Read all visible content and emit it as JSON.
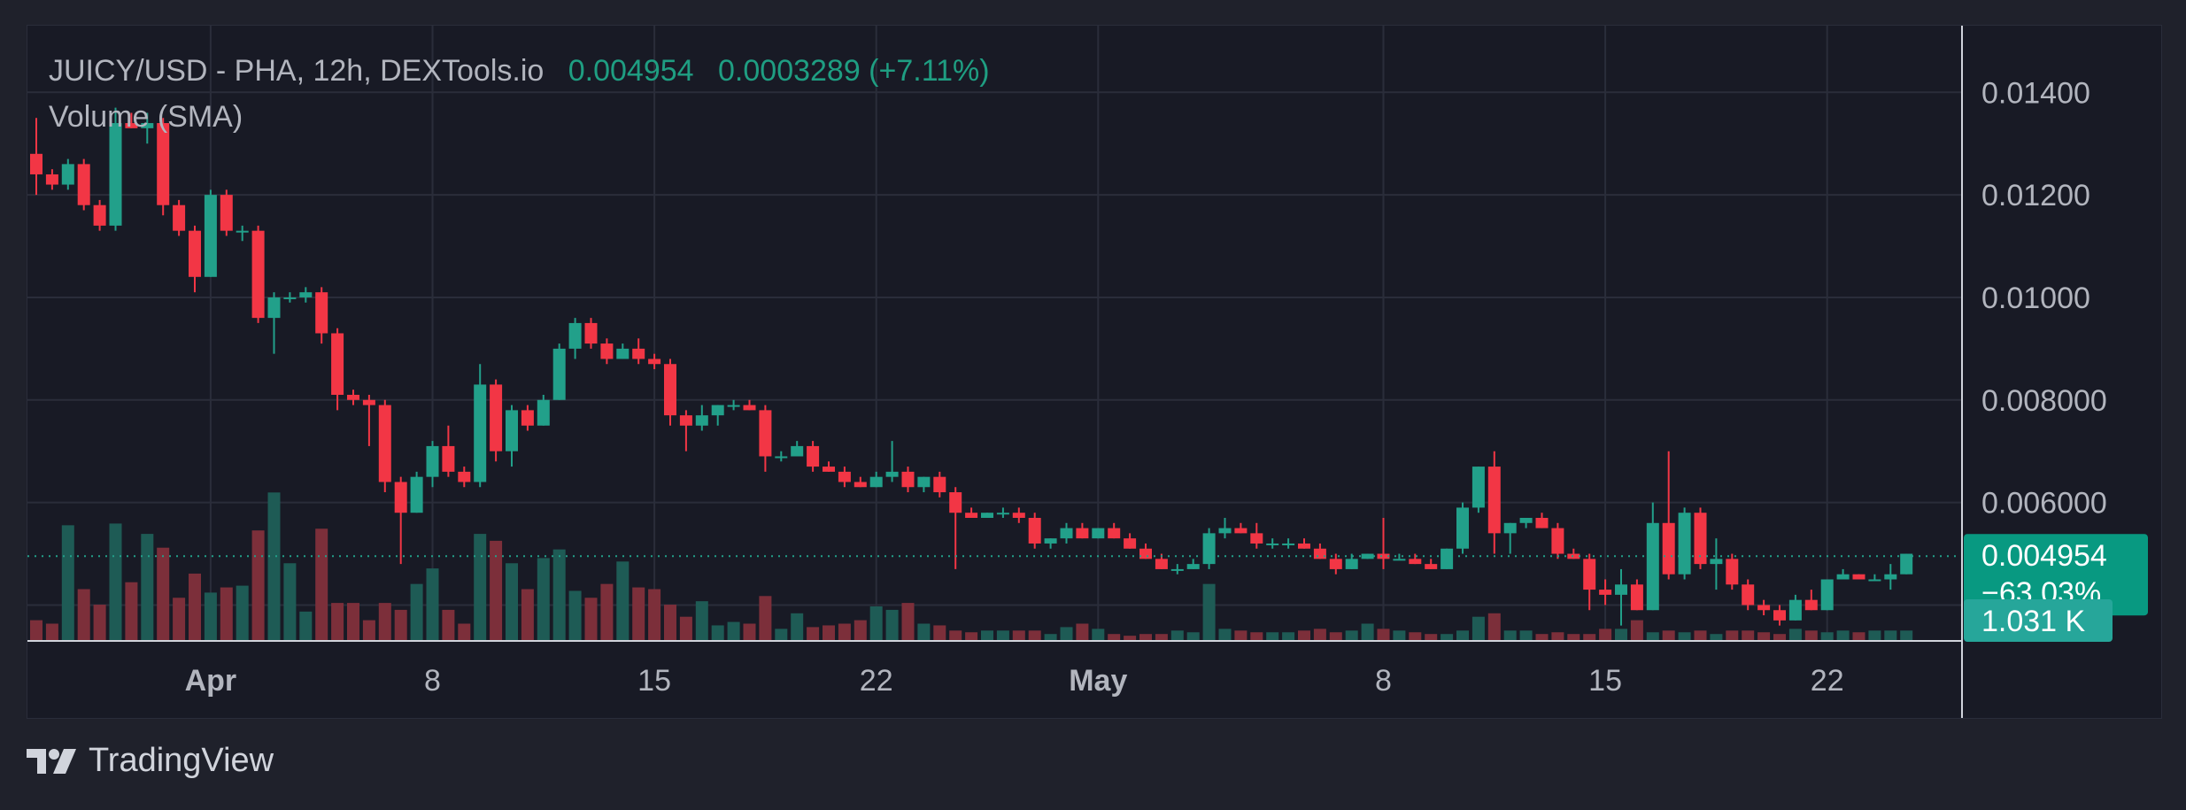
{
  "legend": {
    "title": "JUICY/USD - PHA, 12h, DEXTools.io",
    "last_price": "0.004954",
    "change": "0.0003289 (+7.11%)",
    "volume_label": "Volume (SMA)"
  },
  "footer": {
    "brand": "TradingView"
  },
  "colors": {
    "up": "#22a08a",
    "down": "#f23645",
    "up_vol": "#1e5b55",
    "down_vol": "#7c2f3a",
    "grid": "#2a2d3a",
    "axis_text": "#b2b5be"
  },
  "chart_data": {
    "type": "candlestick",
    "y_axis": {
      "ticks": [
        "0.01400",
        "0.01200",
        "0.01000",
        "0.008000",
        "0.006000"
      ],
      "tick_values": [
        0.014,
        0.012,
        0.01,
        0.008,
        0.006
      ],
      "range": [
        0.0033,
        0.0153
      ]
    },
    "x_axis": {
      "labels": [
        "Apr",
        "8",
        "15",
        "22",
        "May",
        "8",
        "15",
        "22"
      ],
      "label_index": [
        11,
        25,
        39,
        53,
        67,
        85,
        99,
        113
      ],
      "bold": [
        true,
        false,
        false,
        false,
        true,
        false,
        false,
        false
      ]
    },
    "price_label": {
      "value": "0.004954",
      "change": "−63.03%"
    },
    "volume_label": "1.031 K",
    "candles": [
      [
        0.0128,
        0.0135,
        0.012,
        0.0124
      ],
      [
        0.0124,
        0.0125,
        0.0121,
        0.0122
      ],
      [
        0.0122,
        0.0127,
        0.0121,
        0.0126
      ],
      [
        0.0126,
        0.0127,
        0.0117,
        0.0118
      ],
      [
        0.0118,
        0.0119,
        0.0113,
        0.0114
      ],
      [
        0.0114,
        0.0137,
        0.0113,
        0.0134
      ],
      [
        0.0134,
        0.0136,
        0.0133,
        0.0133
      ],
      [
        0.0133,
        0.0136,
        0.013,
        0.0134
      ],
      [
        0.0134,
        0.0135,
        0.0116,
        0.0118
      ],
      [
        0.0118,
        0.0119,
        0.0112,
        0.0113
      ],
      [
        0.0113,
        0.0114,
        0.0101,
        0.0104
      ],
      [
        0.0104,
        0.0121,
        0.0104,
        0.012
      ],
      [
        0.012,
        0.0121,
        0.0112,
        0.0113
      ],
      [
        0.0113,
        0.0114,
        0.0111,
        0.0113
      ],
      [
        0.0113,
        0.0114,
        0.0095,
        0.0096
      ],
      [
        0.0096,
        0.0101,
        0.0089,
        0.01
      ],
      [
        0.01,
        0.0101,
        0.0099,
        0.01
      ],
      [
        0.01,
        0.0102,
        0.0099,
        0.0101
      ],
      [
        0.0101,
        0.0102,
        0.0091,
        0.0093
      ],
      [
        0.0093,
        0.0094,
        0.0078,
        0.0081
      ],
      [
        0.0081,
        0.0082,
        0.0079,
        0.008
      ],
      [
        0.008,
        0.0081,
        0.0071,
        0.0079
      ],
      [
        0.0079,
        0.008,
        0.0062,
        0.0064
      ],
      [
        0.0064,
        0.0065,
        0.0048,
        0.0058
      ],
      [
        0.0058,
        0.0066,
        0.0058,
        0.0065
      ],
      [
        0.0065,
        0.0072,
        0.0063,
        0.0071
      ],
      [
        0.0071,
        0.0075,
        0.0065,
        0.0066
      ],
      [
        0.0066,
        0.0067,
        0.0063,
        0.0064
      ],
      [
        0.0064,
        0.0087,
        0.0063,
        0.0083
      ],
      [
        0.0083,
        0.0084,
        0.0068,
        0.007
      ],
      [
        0.007,
        0.0079,
        0.0067,
        0.0078
      ],
      [
        0.0078,
        0.0079,
        0.0074,
        0.0075
      ],
      [
        0.0075,
        0.0081,
        0.0075,
        0.008
      ],
      [
        0.008,
        0.0091,
        0.008,
        0.009
      ],
      [
        0.009,
        0.0096,
        0.0088,
        0.0095
      ],
      [
        0.0095,
        0.0096,
        0.009,
        0.0091
      ],
      [
        0.0091,
        0.0092,
        0.0087,
        0.0088
      ],
      [
        0.0088,
        0.0091,
        0.0088,
        0.009
      ],
      [
        0.009,
        0.0092,
        0.0087,
        0.0088
      ],
      [
        0.0088,
        0.0089,
        0.0086,
        0.0087
      ],
      [
        0.0087,
        0.0088,
        0.0075,
        0.0077
      ],
      [
        0.0077,
        0.0078,
        0.007,
        0.0075
      ],
      [
        0.0075,
        0.0079,
        0.0074,
        0.0077
      ],
      [
        0.0077,
        0.0079,
        0.0075,
        0.0079
      ],
      [
        0.0079,
        0.008,
        0.0078,
        0.0079
      ],
      [
        0.0079,
        0.008,
        0.0078,
        0.0078
      ],
      [
        0.0078,
        0.0079,
        0.0066,
        0.0069
      ],
      [
        0.0069,
        0.007,
        0.0068,
        0.0069
      ],
      [
        0.0069,
        0.0072,
        0.0069,
        0.0071
      ],
      [
        0.0071,
        0.0072,
        0.0066,
        0.0067
      ],
      [
        0.0067,
        0.0068,
        0.0066,
        0.0066
      ],
      [
        0.0066,
        0.0067,
        0.0063,
        0.0064
      ],
      [
        0.0064,
        0.0065,
        0.0063,
        0.0063
      ],
      [
        0.0063,
        0.0066,
        0.0063,
        0.0065
      ],
      [
        0.0065,
        0.0072,
        0.0064,
        0.0066
      ],
      [
        0.0066,
        0.0067,
        0.0062,
        0.0063
      ],
      [
        0.0063,
        0.0065,
        0.0062,
        0.0065
      ],
      [
        0.0065,
        0.0066,
        0.0061,
        0.0062
      ],
      [
        0.0062,
        0.0063,
        0.0047,
        0.0058
      ],
      [
        0.0058,
        0.0059,
        0.0057,
        0.0057
      ],
      [
        0.0057,
        0.0058,
        0.0057,
        0.0058
      ],
      [
        0.0058,
        0.0059,
        0.0057,
        0.0058
      ],
      [
        0.0058,
        0.0059,
        0.0056,
        0.0057
      ],
      [
        0.0057,
        0.0058,
        0.0051,
        0.0052
      ],
      [
        0.0052,
        0.0053,
        0.0051,
        0.0053
      ],
      [
        0.0053,
        0.0056,
        0.0052,
        0.0055
      ],
      [
        0.0055,
        0.0056,
        0.0053,
        0.0053
      ],
      [
        0.0053,
        0.0055,
        0.0053,
        0.0055
      ],
      [
        0.0055,
        0.0056,
        0.0053,
        0.0053
      ],
      [
        0.0053,
        0.0054,
        0.0051,
        0.0051
      ],
      [
        0.0051,
        0.0052,
        0.0049,
        0.0049
      ],
      [
        0.0049,
        0.005,
        0.0047,
        0.0047
      ],
      [
        0.0047,
        0.0048,
        0.0046,
        0.0047
      ],
      [
        0.0047,
        0.0049,
        0.0047,
        0.0048
      ],
      [
        0.0048,
        0.0055,
        0.0047,
        0.0054
      ],
      [
        0.0054,
        0.0057,
        0.0053,
        0.0055
      ],
      [
        0.0055,
        0.0056,
        0.0054,
        0.0054
      ],
      [
        0.0054,
        0.0056,
        0.0051,
        0.0052
      ],
      [
        0.0052,
        0.0053,
        0.0051,
        0.0052
      ],
      [
        0.0052,
        0.0053,
        0.0051,
        0.0052
      ],
      [
        0.0052,
        0.0053,
        0.0051,
        0.0051
      ],
      [
        0.0051,
        0.0052,
        0.0049,
        0.0049
      ],
      [
        0.0049,
        0.005,
        0.0046,
        0.0047
      ],
      [
        0.0047,
        0.005,
        0.0047,
        0.0049
      ],
      [
        0.0049,
        0.005,
        0.0049,
        0.005
      ],
      [
        0.005,
        0.0057,
        0.0047,
        0.0049
      ],
      [
        0.0049,
        0.005,
        0.0049,
        0.0049
      ],
      [
        0.0049,
        0.005,
        0.0048,
        0.0048
      ],
      [
        0.0048,
        0.0049,
        0.0047,
        0.0047
      ],
      [
        0.0047,
        0.0051,
        0.0047,
        0.0051
      ],
      [
        0.0051,
        0.006,
        0.005,
        0.0059
      ],
      [
        0.0059,
        0.0067,
        0.0058,
        0.0067
      ],
      [
        0.0067,
        0.007,
        0.005,
        0.0054
      ],
      [
        0.0054,
        0.0056,
        0.005,
        0.0056
      ],
      [
        0.0056,
        0.0057,
        0.0055,
        0.0057
      ],
      [
        0.0057,
        0.0058,
        0.0055,
        0.0055
      ],
      [
        0.0055,
        0.0056,
        0.0049,
        0.005
      ],
      [
        0.005,
        0.0051,
        0.0049,
        0.0049
      ],
      [
        0.0049,
        0.005,
        0.0039,
        0.0043
      ],
      [
        0.0043,
        0.0045,
        0.004,
        0.0042
      ],
      [
        0.0042,
        0.0047,
        0.0036,
        0.0044
      ],
      [
        0.0044,
        0.0045,
        0.0039,
        0.0039
      ],
      [
        0.0039,
        0.006,
        0.0039,
        0.0056
      ],
      [
        0.0056,
        0.007,
        0.0045,
        0.0046
      ],
      [
        0.0046,
        0.0059,
        0.0045,
        0.0058
      ],
      [
        0.0058,
        0.0059,
        0.0047,
        0.0048
      ],
      [
        0.0048,
        0.0053,
        0.0043,
        0.0049
      ],
      [
        0.0049,
        0.005,
        0.0043,
        0.0044
      ],
      [
        0.0044,
        0.0045,
        0.0039,
        0.004
      ],
      [
        0.004,
        0.0041,
        0.0038,
        0.0039
      ],
      [
        0.0039,
        0.004,
        0.0036,
        0.0037
      ],
      [
        0.0037,
        0.0042,
        0.0037,
        0.0041
      ],
      [
        0.0041,
        0.0043,
        0.0039,
        0.0039
      ],
      [
        0.0039,
        0.0045,
        0.0039,
        0.0045
      ],
      [
        0.0045,
        0.0047,
        0.0045,
        0.0046
      ],
      [
        0.0046,
        0.0046,
        0.0045,
        0.0045
      ],
      [
        0.0045,
        0.0046,
        0.0045,
        0.0045
      ],
      [
        0.0045,
        0.0048,
        0.0043,
        0.0046
      ],
      [
        0.0046,
        0.005,
        0.0046,
        0.005
      ]
    ],
    "volume": {
      "range": [
        0,
        1.0
      ],
      "values": [
        0.12,
        0.1,
        0.67,
        0.3,
        0.21,
        0.68,
        0.34,
        0.62,
        0.54,
        0.25,
        0.39,
        0.28,
        0.31,
        0.32,
        0.64,
        0.86,
        0.45,
        0.17,
        0.65,
        0.22,
        0.22,
        0.12,
        0.22,
        0.18,
        0.33,
        0.42,
        0.18,
        0.1,
        0.62,
        0.58,
        0.45,
        0.3,
        0.48,
        0.53,
        0.29,
        0.25,
        0.33,
        0.46,
        0.31,
        0.3,
        0.21,
        0.14,
        0.23,
        0.09,
        0.11,
        0.1,
        0.26,
        0.07,
        0.16,
        0.08,
        0.09,
        0.1,
        0.12,
        0.2,
        0.18,
        0.22,
        0.1,
        0.09,
        0.06,
        0.05,
        0.06,
        0.06,
        0.06,
        0.06,
        0.04,
        0.08,
        0.1,
        0.07,
        0.04,
        0.03,
        0.04,
        0.04,
        0.06,
        0.05,
        0.33,
        0.07,
        0.06,
        0.05,
        0.05,
        0.05,
        0.06,
        0.07,
        0.05,
        0.06,
        0.1,
        0.07,
        0.06,
        0.05,
        0.04,
        0.04,
        0.06,
        0.14,
        0.16,
        0.06,
        0.06,
        0.04,
        0.05,
        0.04,
        0.04,
        0.07,
        0.07,
        0.12,
        0.05,
        0.06,
        0.05,
        0.06,
        0.04,
        0.06,
        0.06,
        0.05,
        0.04,
        0.07,
        0.06,
        0.05,
        0.06,
        0.05,
        0.06,
        0.06,
        0.06
      ]
    }
  }
}
